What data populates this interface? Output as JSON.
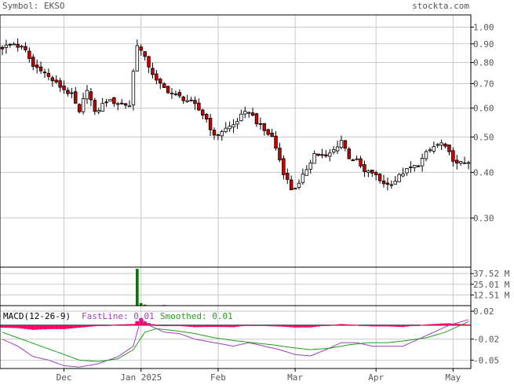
{
  "header": {
    "symbol_label": "Symbol: EKSO",
    "site_label": "stockta.com"
  },
  "colors": {
    "up_candle": "#ffffff",
    "down_candle": "#cc0000",
    "candle_stroke": "#000000",
    "grid": "#c8c8c8",
    "volume": "#007a00",
    "hist": "#ff0066",
    "fastline": "#a040c0",
    "smoothed": "#20a020",
    "text": "#555555"
  },
  "chart_data": [
    {
      "type": "candlestick",
      "panel": "price",
      "scale": "log",
      "ylim": [
        0.22,
        1.08
      ],
      "y_ticks": [
        "1.00",
        "0.90",
        "0.80",
        "0.70",
        "0.60",
        "0.50",
        "0.40",
        "0.30"
      ],
      "x_ticks": [
        "Dec",
        "Jan 2025",
        "Feb",
        "Mar",
        "Apr",
        "May"
      ],
      "x_tick_index": [
        16,
        36,
        56,
        76,
        97,
        117
      ],
      "n_days": 122,
      "grid": true,
      "close_anchors": [
        [
          0,
          0.88
        ],
        [
          3,
          0.9
        ],
        [
          6,
          0.86
        ],
        [
          8,
          0.78
        ],
        [
          10,
          0.77
        ],
        [
          12,
          0.73
        ],
        [
          14,
          0.7
        ],
        [
          18,
          0.65
        ],
        [
          20,
          0.58
        ],
        [
          22,
          0.68
        ],
        [
          24,
          0.58
        ],
        [
          27,
          0.63
        ],
        [
          30,
          0.62
        ],
        [
          33,
          0.61
        ],
        [
          35,
          0.9
        ],
        [
          37,
          0.82
        ],
        [
          40,
          0.71
        ],
        [
          42,
          0.68
        ],
        [
          45,
          0.65
        ],
        [
          48,
          0.63
        ],
        [
          50,
          0.61
        ],
        [
          53,
          0.56
        ],
        [
          55,
          0.5
        ],
        [
          57,
          0.52
        ],
        [
          60,
          0.54
        ],
        [
          62,
          0.57
        ],
        [
          64,
          0.59
        ],
        [
          66,
          0.55
        ],
        [
          68,
          0.52
        ],
        [
          70,
          0.5
        ],
        [
          73,
          0.4
        ],
        [
          75,
          0.36
        ],
        [
          77,
          0.37
        ],
        [
          79,
          0.41
        ],
        [
          81,
          0.45
        ],
        [
          84,
          0.44
        ],
        [
          86,
          0.46
        ],
        [
          88,
          0.49
        ],
        [
          90,
          0.44
        ],
        [
          92,
          0.43
        ],
        [
          94,
          0.4
        ],
        [
          96,
          0.4
        ],
        [
          98,
          0.38
        ],
        [
          100,
          0.37
        ],
        [
          102,
          0.38
        ],
        [
          104,
          0.4
        ],
        [
          106,
          0.41
        ],
        [
          108,
          0.42
        ],
        [
          110,
          0.45
        ],
        [
          112,
          0.47
        ],
        [
          114,
          0.48
        ],
        [
          116,
          0.45
        ],
        [
          118,
          0.42
        ],
        [
          121,
          0.43
        ]
      ]
    },
    {
      "type": "bar",
      "panel": "volume",
      "y_ticks": [
        "37.52 M",
        "25.01 M",
        "12.51 M"
      ],
      "ylim": [
        0,
        45
      ],
      "spikes": [
        [
          35,
          43.0
        ],
        [
          36,
          3.0
        ],
        [
          37,
          1.2
        ],
        [
          42,
          0.8
        ],
        [
          43,
          0.5
        ]
      ]
    },
    {
      "type": "line",
      "panel": "macd",
      "label": "MACD(12-26-9)",
      "series_labels": [
        "FastLine: 0.01",
        "Smoothed: 0.01"
      ],
      "y_ticks": [
        "0.02",
        "-0.02",
        "-0.05"
      ],
      "ylim": [
        -0.062,
        0.028
      ],
      "fast_anchors": [
        [
          0,
          -0.02
        ],
        [
          4,
          -0.03
        ],
        [
          8,
          -0.045
        ],
        [
          12,
          -0.05
        ],
        [
          16,
          -0.058
        ],
        [
          20,
          -0.06
        ],
        [
          25,
          -0.055
        ],
        [
          30,
          -0.045
        ],
        [
          34,
          -0.03
        ],
        [
          36,
          0.01
        ],
        [
          38,
          0.0
        ],
        [
          42,
          -0.01
        ],
        [
          46,
          -0.012
        ],
        [
          50,
          -0.02
        ],
        [
          55,
          -0.025
        ],
        [
          60,
          -0.03
        ],
        [
          64,
          -0.025
        ],
        [
          68,
          -0.03
        ],
        [
          72,
          -0.035
        ],
        [
          76,
          -0.042
        ],
        [
          80,
          -0.044
        ],
        [
          84,
          -0.035
        ],
        [
          88,
          -0.025
        ],
        [
          92,
          -0.025
        ],
        [
          96,
          -0.03
        ],
        [
          100,
          -0.03
        ],
        [
          104,
          -0.03
        ],
        [
          108,
          -0.02
        ],
        [
          112,
          -0.01
        ],
        [
          116,
          0.0
        ],
        [
          121,
          0.008
        ]
      ],
      "smooth_anchors": [
        [
          0,
          -0.01
        ],
        [
          5,
          -0.02
        ],
        [
          10,
          -0.03
        ],
        [
          15,
          -0.04
        ],
        [
          20,
          -0.05
        ],
        [
          25,
          -0.052
        ],
        [
          30,
          -0.048
        ],
        [
          34,
          -0.035
        ],
        [
          37,
          -0.01
        ],
        [
          40,
          -0.005
        ],
        [
          45,
          -0.008
        ],
        [
          50,
          -0.012
        ],
        [
          55,
          -0.018
        ],
        [
          60,
          -0.022
        ],
        [
          65,
          -0.025
        ],
        [
          70,
          -0.028
        ],
        [
          75,
          -0.032
        ],
        [
          80,
          -0.035
        ],
        [
          85,
          -0.033
        ],
        [
          90,
          -0.028
        ],
        [
          95,
          -0.025
        ],
        [
          100,
          -0.025
        ],
        [
          105,
          -0.022
        ],
        [
          110,
          -0.018
        ],
        [
          115,
          -0.01
        ],
        [
          121,
          0.005
        ]
      ]
    }
  ]
}
